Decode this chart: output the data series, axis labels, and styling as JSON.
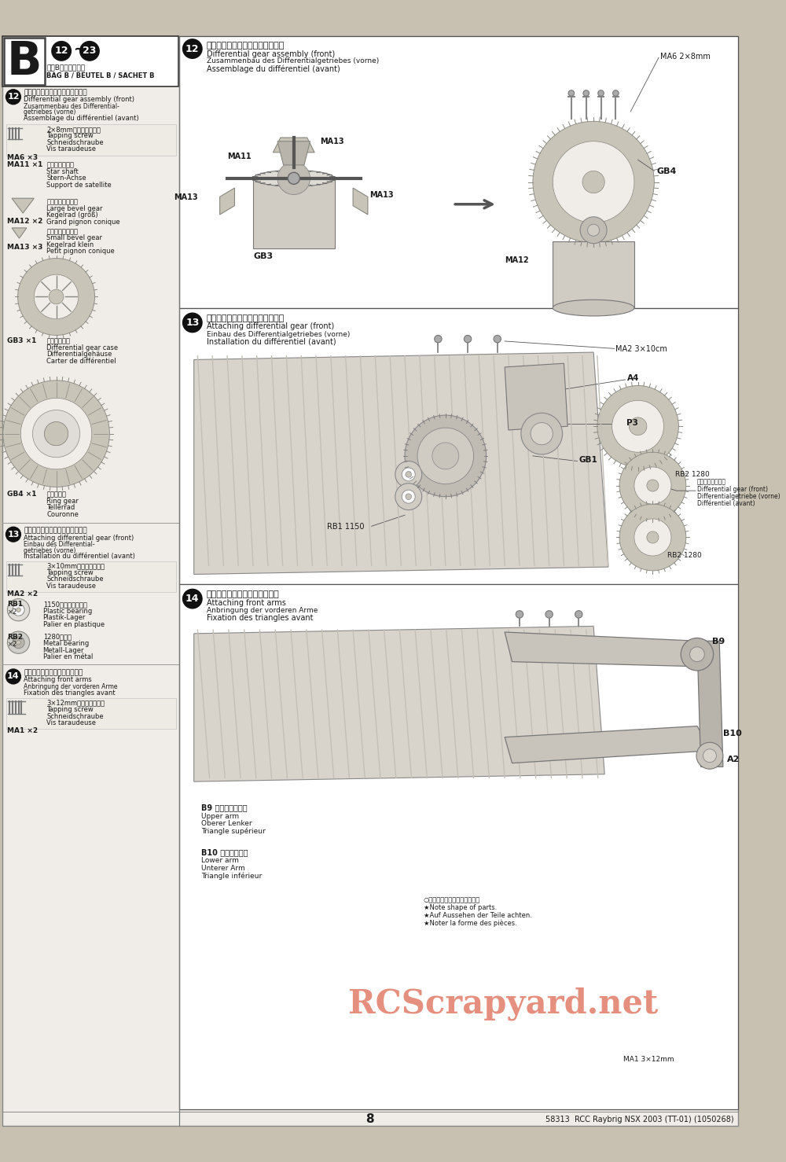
{
  "page_number": "8",
  "footer_right": "58313  RCC Raybrig NSX 2003 (TT-01) (1050268)",
  "bg_color": "#c8c0b0",
  "page_bg": "#f0ede8",
  "white": "#ffffff",
  "border_color": "#404040",
  "text_dark": "#1a1a1a",
  "text_mid": "#444444",
  "gear_fill": "#c8c4b8",
  "gear_edge": "#888880",
  "chassis_fill": "#d8d4cc",
  "chassis_stripe": "#c0bcb4",
  "section_B_label": "B",
  "section_B_steps": "12 ~ 23",
  "section_B_jp": "袋詰Bを使用します",
  "section_B_multi": "BAG B / BEUTEL B / SACHET B",
  "s12_jp": "「フロントデフギヤの組み立て」",
  "s12_en": "Differential gear assembly (front)",
  "s12_de": "Zusammenbau des Differentialgetriebes (vorne)",
  "s12_fr": "Assemblage du différentiel (avant)",
  "s13_jp": "「フロントデフギヤの取り付け」",
  "s13_en": "Attaching differential gear (front)",
  "s13_de": "Einbau des Differentialgetriebes (vorne)",
  "s13_fr": "Installation du différentiel (avant)",
  "s14_jp": "「フロントアームの取り付け」",
  "s14_en": "Attaching front arms",
  "s14_de": "Anbringung der vorderen Arme",
  "s14_fr": "Fixation des triangles avant",
  "ma6_jp": "2×8mmタッピングビス",
  "ma6_en": "Tapping screw",
  "ma6_de": "Schneidschraube",
  "ma6_fr": "Vis taraudeuse",
  "ma6_label": "MA6 ×3",
  "ma11_jp": "ベベルシャフト",
  "ma11_en": "Star shaft",
  "ma11_de": "Stern-Achse",
  "ma11_fr": "Support de satellite",
  "ma11_label": "MA11 ×1",
  "ma12_jp": "ベベルギヤ（大）",
  "ma12_en": "Large bevel gear",
  "ma12_de": "Kegelrad (groß)",
  "ma12_fr": "Grand pignon conique",
  "ma12_label": "MA12 ×2",
  "ma13_jp": "ベベルギヤ（小）",
  "ma13_en": "Small bevel gear",
  "ma13_de": "Kegelrad klein",
  "ma13_fr": "Petit pignon conique",
  "ma13_label": "MA13 ×3",
  "gb3_jp": "デフキャリア",
  "gb3_en": "Differential gear case",
  "gb3_de": "Differentialgehäuse",
  "gb3_fr": "Carter de différentiel",
  "gb3_label": "GB3 ×1",
  "gb4_jp": "リングギヤ",
  "gb4_en": "Ring gear",
  "gb4_de": "Tellerrad",
  "gb4_fr": "Couronne",
  "gb4_label": "GB4 ×1",
  "ma2_jp": "3×10mmタッピングビス",
  "ma2_en": "Tapping screw",
  "ma2_de": "Schneidschraube",
  "ma2_fr": "Vis taraudeuse",
  "ma2_label": "MA2 ×2",
  "rb1_jp": "1150プラベアリング",
  "rb1_en": "Plastic bearing",
  "rb1_de": "Plastik-Lager",
  "rb1_fr": "Palier en plastique",
  "rb1_label": "RB1",
  "rb1_x": "×2",
  "rb2_jp": "1280メタル",
  "rb2_en": "Metal bearing",
  "rb2_de": "Metall-Lager",
  "rb2_fr": "Palier en métal",
  "rb2_label": "RB2",
  "rb2_x": "×2",
  "ma1_jp": "3×12mmタッピングビス",
  "ma1_en": "Tapping screw",
  "ma1_de": "Schneidschraube",
  "ma1_fr": "Vis taraudeuse",
  "ma1_label": "MA1 ×2",
  "b9_jp": "B9 アッパーアーム",
  "b9_en": "Upper arm",
  "b9_de": "Oberer Lenker",
  "b9_fr": "Triangle supérieur",
  "b10_jp": "B10 ロアーアーム",
  "b10_en": "Lower arm",
  "b10_de": "Unterer Arm",
  "b10_fr": "Triangle inférieur",
  "front_diff_jp": "フロントデフギヤ",
  "front_diff_en": "Differential gear (front)",
  "front_diff_de": "Differentialgetriebe (vorne)",
  "front_diff_fr": "Différentiel (avant)",
  "note_jp": "○印品の形を調べてください。",
  "note_en": "★Note shape of parts.",
  "note_de": "★Auf Aussehen der Teile achten.",
  "note_fr": "★Noter la forme des pièces.",
  "watermark": "RCScrapyard.net",
  "watermark_color": "#cc2200"
}
